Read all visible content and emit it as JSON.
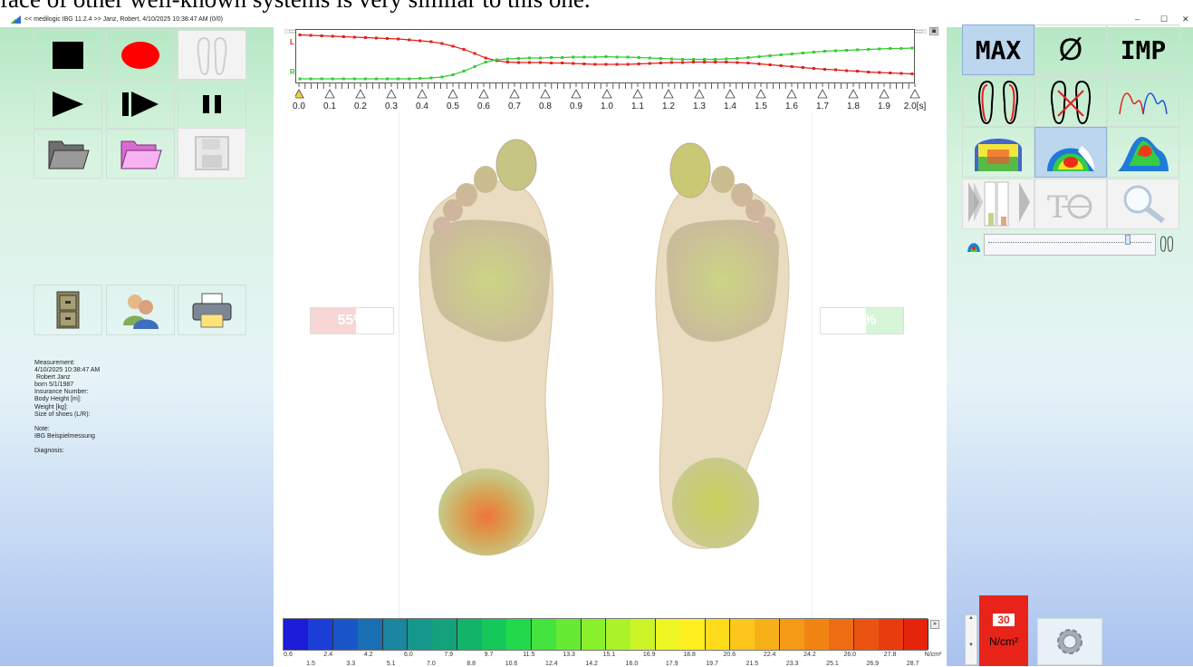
{
  "page_top_text": "face of other well-known systems is very similar to this one.",
  "window": {
    "title": "<< medilogic IBG 11.2.4 >>   Janz, Robert, 4/10/2025 10:38:47 AM (0/0)",
    "minimize": "–",
    "maximize": "☐",
    "close": "✕"
  },
  "left_toolbar": {
    "buttons": [
      {
        "name": "stop-button",
        "icon": "stop-square-icon"
      },
      {
        "name": "record-button",
        "icon": "record-ellipse-icon",
        "color": "#ff0000"
      },
      {
        "name": "insoles-button",
        "icon": "insole-outline-icon",
        "disabled": true
      },
      {
        "name": "play-button",
        "icon": "play-triangle-icon"
      },
      {
        "name": "step-play-button",
        "icon": "step-play-icon"
      },
      {
        "name": "pause-button",
        "icon": "pause-bars-icon"
      },
      {
        "name": "open-folder-button",
        "icon": "folder-gray-icon"
      },
      {
        "name": "open-folder-pink-button",
        "icon": "folder-pink-icon",
        "color": "#f7a6f0"
      },
      {
        "name": "save-button",
        "icon": "floppy-disk-icon",
        "disabled": true
      },
      {
        "name": "archive-button",
        "icon": "file-cabinet-icon"
      },
      {
        "name": "patients-button",
        "icon": "people-icon"
      },
      {
        "name": "print-button",
        "icon": "printer-icon"
      }
    ]
  },
  "measurement": {
    "heading": "Measurement:",
    "datetime": "4/10/2025 10:38:47 AM",
    "patient_name": " Robert Janz",
    "born": "born 5/1/1987",
    "insurance_label": "Insurance Number:",
    "height_label": "Body Height [m]:",
    "weight_label": "Weight [kg]:",
    "shoe_size_label": "Size of shoes (L/R):",
    "note_label": "Note:",
    "note_value": "IBG Beispielmessung",
    "diagnosis_label": "Diagnosis:"
  },
  "timeline": {
    "left_label": "L",
    "right_label": "R",
    "unit": "[s]",
    "ticks": [
      "0.0",
      "0.1",
      "0.2",
      "0.3",
      "0.4",
      "0.5",
      "0.6",
      "0.7",
      "0.8",
      "0.9",
      "1.0",
      "1.1",
      "1.2",
      "1.3",
      "1.4",
      "1.5",
      "1.6",
      "1.7",
      "1.8",
      "1.9",
      "2.0"
    ],
    "left_series_color": "#e0201a",
    "right_series_color": "#33cc33",
    "left_series": [
      0.97,
      0.96,
      0.95,
      0.94,
      0.93,
      0.92,
      0.91,
      0.9,
      0.89,
      0.88,
      0.86,
      0.84,
      0.82,
      0.78,
      0.72,
      0.65,
      0.56,
      0.46,
      0.4,
      0.37,
      0.36,
      0.36,
      0.36,
      0.35,
      0.35,
      0.34,
      0.33,
      0.32,
      0.32,
      0.32,
      0.32,
      0.33,
      0.34,
      0.35,
      0.36,
      0.36,
      0.37,
      0.37,
      0.37,
      0.37,
      0.36,
      0.35,
      0.33,
      0.31,
      0.29,
      0.27,
      0.25,
      0.23,
      0.21,
      0.2,
      0.18,
      0.17,
      0.15,
      0.14,
      0.13,
      0.12,
      0.11
    ],
    "right_series": [
      0.0,
      0.0,
      0.0,
      0.0,
      0.0,
      0.0,
      0.0,
      0.0,
      0.0,
      0.0,
      0.0,
      0.01,
      0.02,
      0.04,
      0.09,
      0.17,
      0.27,
      0.37,
      0.42,
      0.44,
      0.45,
      0.46,
      0.46,
      0.47,
      0.47,
      0.48,
      0.48,
      0.48,
      0.49,
      0.48,
      0.48,
      0.47,
      0.46,
      0.45,
      0.44,
      0.43,
      0.43,
      0.43,
      0.43,
      0.44,
      0.45,
      0.47,
      0.49,
      0.51,
      0.53,
      0.55,
      0.57,
      0.59,
      0.61,
      0.62,
      0.63,
      0.64,
      0.65,
      0.66,
      0.67,
      0.67,
      0.68
    ]
  },
  "balance": {
    "left_percent": "55%",
    "left_fraction": 0.55,
    "left_color": "#f8d6d6",
    "right_percent": "45%",
    "right_fraction": 0.45,
    "right_color": "#d7f5d7"
  },
  "colorscale": {
    "unit": "N/cm²",
    "top_labels": [
      "0.6",
      "2.4",
      "4.2",
      "6.0",
      "7.9",
      "9.7",
      "11.5",
      "13.3",
      "15.1",
      "16.9",
      "18.8",
      "20.6",
      "22.4",
      "24.2",
      "26.0",
      "27.8"
    ],
    "bottom_labels": [
      "1.5",
      "3.3",
      "5.1",
      "7.0",
      "8.8",
      "10.6",
      "12.4",
      "14.2",
      "16.0",
      "17.9",
      "19.7",
      "21.5",
      "23.3",
      "25.1",
      "26.9",
      "28.7"
    ],
    "colors": [
      "#1b1bd8",
      "#1a3ed6",
      "#1a55c8",
      "#1a6eb4",
      "#1a86a0",
      "#16978c",
      "#13a27a",
      "#12b46a",
      "#14c85a",
      "#22d94c",
      "#44e33e",
      "#66ea33",
      "#8af02c",
      "#abf229",
      "#cdf426",
      "#eef623",
      "#ffee20",
      "#fedc1c",
      "#fcc61a",
      "#f8b018",
      "#f59a16",
      "#f28414",
      "#ee6c12",
      "#eb5410",
      "#e83c0e",
      "#e5240c"
    ]
  },
  "right_toolbar": {
    "max_label": "MAX",
    "avg_label": "Ø",
    "imp_label": "IMP",
    "number_display": "30",
    "unit_display": "N/cm²"
  }
}
